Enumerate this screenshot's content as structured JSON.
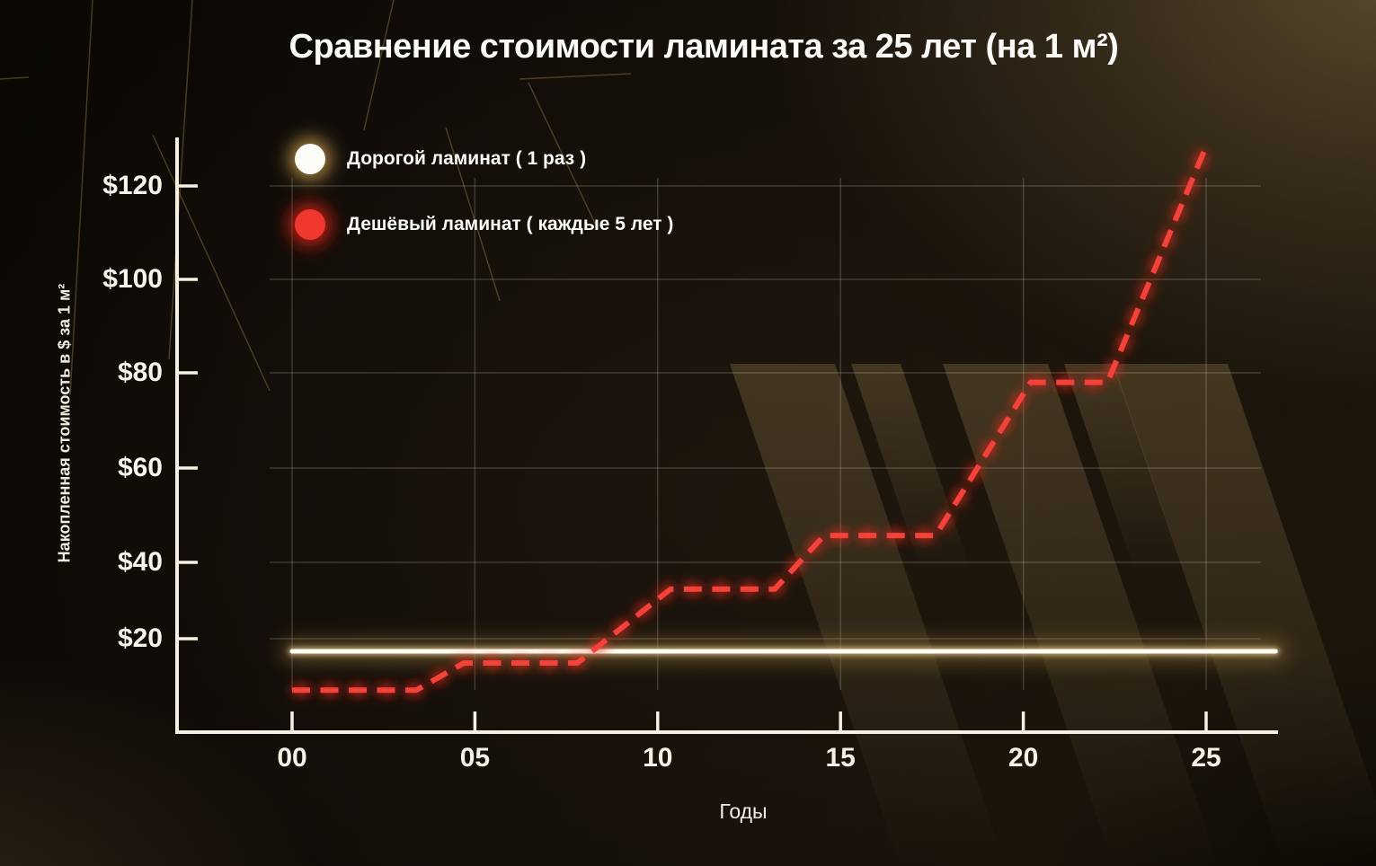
{
  "title": "Сравнение стоимости ламината за 25 лет (на 1 м²)",
  "legend": {
    "items": [
      {
        "label": "Дорогой ламинат ( 1 раз )",
        "swatch_color": "#fdfcf6",
        "glow_color": "#c49a4e"
      },
      {
        "label": "Дешёвый ламинат ( каждые 5 лет )",
        "swatch_color": "#f1382e",
        "glow_color": "#e0231a"
      }
    ]
  },
  "chart_data": {
    "type": "line",
    "title": "Сравнение стоимости ламината за 25 лет (на 1 м²)",
    "xlabel": "Годы",
    "ylabel": "Накопленная стоимость в $ за 1 м²",
    "xlim": [
      0,
      27
    ],
    "ylim": [
      0,
      135
    ],
    "grid": true,
    "legend_position": "upper-left",
    "x_ticks": [
      {
        "value": 0,
        "label": "00"
      },
      {
        "value": 5,
        "label": "05"
      },
      {
        "value": 10,
        "label": "10"
      },
      {
        "value": 15,
        "label": "15"
      },
      {
        "value": 20,
        "label": "20"
      },
      {
        "value": 25,
        "label": "25"
      }
    ],
    "y_ticks": [
      {
        "value": 20,
        "label": "$20"
      },
      {
        "value": 40,
        "label": "$40"
      },
      {
        "value": 60,
        "label": "$60"
      },
      {
        "value": 80,
        "label": "$80"
      },
      {
        "value": 100,
        "label": "$100"
      },
      {
        "value": 120,
        "label": "$120"
      }
    ],
    "series": [
      {
        "name": "Дорогой ламинат ( 1 раз )",
        "style": "solid",
        "color": "#fffdf4",
        "points": [
          [
            0,
            17.3
          ],
          [
            26.9,
            17.3
          ]
        ]
      },
      {
        "name": "Дешёвый ламинат ( каждые 5 лет )",
        "style": "dashed",
        "color": "#f34239",
        "points": [
          [
            0,
            9
          ],
          [
            3.4,
            9
          ],
          [
            4.7,
            14.8
          ],
          [
            7.8,
            14.8
          ],
          [
            10.35,
            33
          ],
          [
            13.2,
            33
          ],
          [
            14.55,
            45.7
          ],
          [
            17.6,
            45.7
          ],
          [
            20.2,
            78
          ],
          [
            22.3,
            78
          ],
          [
            25,
            128.5
          ]
        ]
      }
    ]
  },
  "colors": {
    "background": "#0d0a07",
    "axis": "#f6f1e2",
    "gridline": "#c8c3b3",
    "accent_red": "#f34239",
    "accent_red_glow": "#e1251a",
    "line_white": "#fffdf4",
    "line_white_glow": "#c49a4e",
    "stripe": "#7e6a42"
  }
}
